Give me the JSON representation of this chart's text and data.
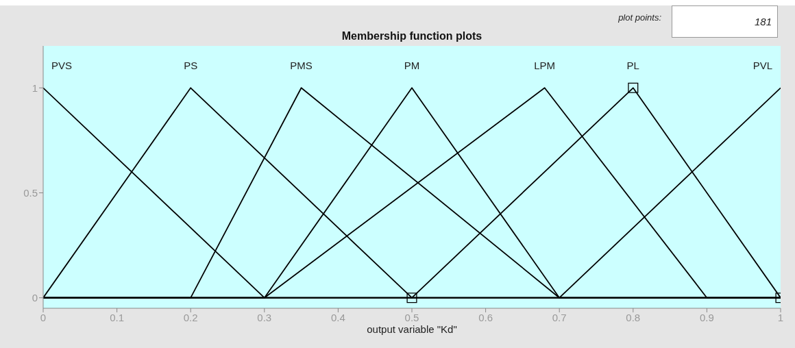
{
  "chart_data": {
    "type": "line",
    "title": "Membership function plots",
    "xlabel": "output variable \"Kd\"",
    "annotations": [
      "plot points:",
      "181"
    ],
    "xlim": [
      0,
      1
    ],
    "xticks": [
      0,
      0.1,
      0.2,
      0.3,
      0.4,
      0.5,
      0.6,
      0.7,
      0.8,
      0.9,
      1
    ],
    "ylim": [
      -0.05,
      1.2
    ],
    "yticks": [
      0,
      0.5,
      1
    ],
    "line_style": "solid",
    "series": [
      {
        "name": "PVS",
        "color": "#000000",
        "x": [
          0,
          0.3,
          1
        ],
        "values": [
          1,
          0,
          0
        ]
      },
      {
        "name": "PS",
        "color": "#000000",
        "x": [
          0,
          0.2,
          0.5,
          1
        ],
        "values": [
          0,
          1,
          0,
          0
        ]
      },
      {
        "name": "PMS",
        "color": "#000000",
        "x": [
          0,
          0.2,
          0.35,
          0.7,
          1
        ],
        "values": [
          0,
          0,
          1,
          0,
          0
        ]
      },
      {
        "name": "PM",
        "color": "#000000",
        "x": [
          0,
          0.3,
          0.5,
          0.7,
          1
        ],
        "values": [
          0,
          0,
          1,
          0,
          0
        ]
      },
      {
        "name": "LPM",
        "color": "#000000",
        "x": [
          0,
          0.3,
          0.68,
          0.9,
          1
        ],
        "values": [
          0,
          0,
          1,
          0,
          0
        ]
      },
      {
        "name": "PL",
        "color": "#000000",
        "x": [
          0,
          0.5,
          0.8,
          1
        ],
        "values": [
          0,
          0,
          1,
          0
        ]
      },
      {
        "type": "scatter",
        "color": "#000000",
        "x": [
          0.5,
          0.8,
          1
        ],
        "values": [
          0,
          1,
          0
        ],
        "marker": "square"
      },
      {
        "name": "PVL",
        "color": "#000000",
        "x": [
          0,
          0.7,
          1
        ],
        "values": [
          0,
          0,
          1
        ]
      }
    ]
  }
}
